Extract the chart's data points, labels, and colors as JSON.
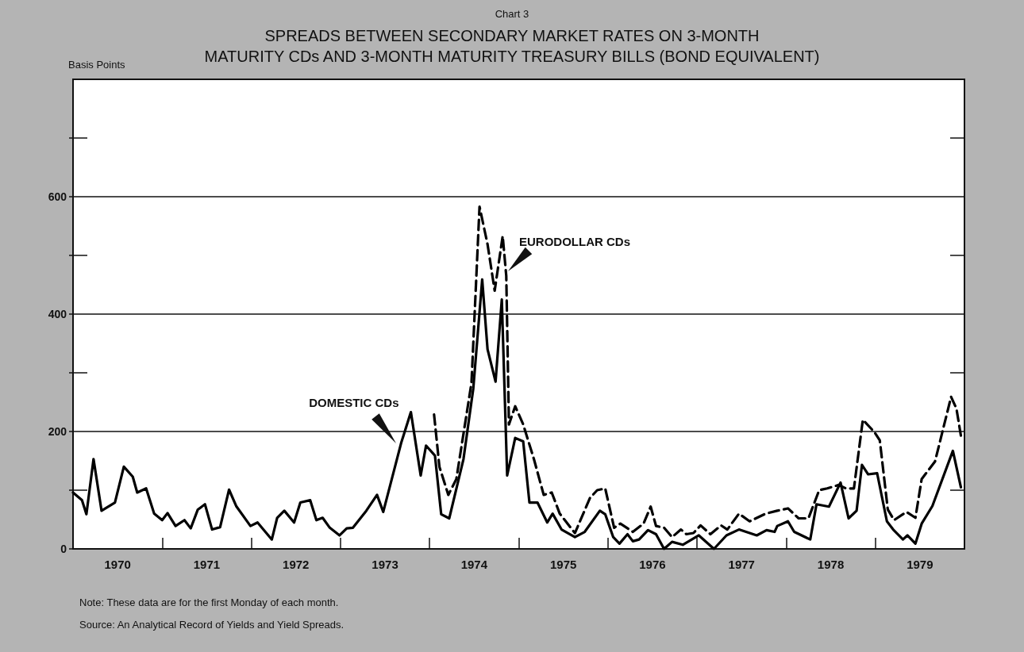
{
  "chart_data": {
    "type": "line",
    "subtitle": "Chart 3",
    "title": "SPREADS BETWEEN SECONDARY MARKET RATES ON 3-MONTH\nMATURITY CDs AND 3-MONTH MATURITY TREASURY BILLS (BOND EQUIVALENT)",
    "ylabel": "Basis Points",
    "annotations": [
      {
        "text": "DOMESTIC CDs",
        "x": 1973.62,
        "y": 180
      },
      {
        "text": "EURODOLLAR CDs",
        "x": 1974.88,
        "y": 473
      },
      "Note:  These data are for the first Monday of each month.",
      "Source:  An Analytical Record of Yields and Yield Spreads."
    ],
    "xlim": [
      1970,
      1980
    ],
    "xticks": [
      {
        "value": 1970,
        "label": null
      },
      {
        "value": 1970.5,
        "label": "1970"
      },
      {
        "value": 1971,
        "label": null
      },
      {
        "value": 1971.5,
        "label": "1971"
      },
      {
        "value": 1972,
        "label": null
      },
      {
        "value": 1972.5,
        "label": "1972"
      },
      {
        "value": 1973,
        "label": null
      },
      {
        "value": 1973.5,
        "label": "1973"
      },
      {
        "value": 1974,
        "label": null
      },
      {
        "value": 1974.5,
        "label": "1974"
      },
      {
        "value": 1975,
        "label": null
      },
      {
        "value": 1975.5,
        "label": "1975"
      },
      {
        "value": 1976,
        "label": null
      },
      {
        "value": 1976.5,
        "label": "1976"
      },
      {
        "value": 1977,
        "label": null
      },
      {
        "value": 1977.5,
        "label": "1977"
      },
      {
        "value": 1978,
        "label": null
      },
      {
        "value": 1978.5,
        "label": "1978"
      },
      {
        "value": 1979,
        "label": null
      },
      {
        "value": 1979.5,
        "label": "1979"
      }
    ],
    "ylim": [
      0,
      800
    ],
    "yticks": [
      0,
      {
        "value": 100,
        "label": null
      },
      200,
      {
        "value": 300,
        "label": null
      },
      400,
      {
        "value": 500,
        "label": null
      },
      600,
      {
        "value": 700,
        "label": null
      }
    ],
    "grid": "y",
    "marker": "none",
    "series": [
      {
        "color": "#000000",
        "line_style": "solid",
        "x": [
          1970.0,
          1970.1,
          1970.15,
          1970.23,
          1970.32,
          1970.47,
          1970.57,
          1970.67,
          1970.72,
          1970.82,
          1970.91,
          1971.0,
          1971.06,
          1971.15,
          1971.25,
          1971.32,
          1971.4,
          1971.48,
          1971.56,
          1971.65,
          1971.75,
          1971.83,
          1971.99,
          1972.07,
          1972.23,
          1972.29,
          1972.37,
          1972.48,
          1972.55,
          1972.66,
          1972.73,
          1972.8,
          1972.88,
          1972.99,
          1973.07,
          1973.14,
          1973.29,
          1973.41,
          1973.48,
          1973.68,
          1973.79,
          1973.9,
          1973.96,
          1974.06,
          1974.13,
          1974.22,
          1974.38,
          1974.49,
          1974.59,
          1974.65,
          1974.74,
          1974.81,
          1974.87,
          1974.96,
          1975.05,
          1975.12,
          1975.21,
          1975.32,
          1975.38,
          1975.48,
          1975.63,
          1975.74,
          1975.91,
          1975.97,
          1976.06,
          1976.13,
          1976.22,
          1976.28,
          1976.35,
          1976.45,
          1976.54,
          1976.63,
          1976.72,
          1976.84,
          1977.02,
          1977.19,
          1977.33,
          1977.47,
          1977.67,
          1977.78,
          1977.87,
          1977.9,
          1978.02,
          1978.09,
          1978.27,
          1978.34,
          1978.48,
          1978.61,
          1978.7,
          1978.79,
          1978.85,
          1978.92,
          1979.02,
          1979.13,
          1979.2,
          1979.31,
          1979.36,
          1979.45,
          1979.52,
          1979.64,
          1979.87,
          1979.96
        ],
        "values": [
          96,
          83,
          59,
          153,
          65,
          79,
          140,
          123,
          96,
          103,
          60,
          49,
          61,
          39,
          49,
          35,
          67,
          76,
          33,
          37,
          101,
          73,
          39,
          45,
          16,
          53,
          65,
          45,
          79,
          83,
          49,
          53,
          36,
          23,
          35,
          36,
          65,
          92,
          63,
          180,
          233,
          125,
          176,
          159,
          59,
          52,
          153,
          273,
          459,
          340,
          285,
          425,
          125,
          189,
          183,
          79,
          79,
          45,
          60,
          33,
          20,
          29,
          65,
          59,
          20,
          9,
          25,
          13,
          16,
          32,
          25,
          0,
          12,
          7,
          23,
          0,
          23,
          33,
          23,
          32,
          29,
          39,
          47,
          29,
          16,
          76,
          72,
          113,
          52,
          65,
          143,
          127,
          129,
          47,
          33,
          16,
          23,
          9,
          43,
          73,
          167,
          105
        ]
      },
      {
        "color": "#000000",
        "line_style": "dashed",
        "x": [
          1974.05,
          1974.11,
          1974.21,
          1974.3,
          1974.41,
          1974.47,
          1974.56,
          1974.65,
          1974.73,
          1974.82,
          1974.86,
          1974.89,
          1974.96,
          1975.05,
          1975.17,
          1975.28,
          1975.37,
          1975.46,
          1975.63,
          1975.8,
          1975.88,
          1975.97,
          1976.07,
          1976.14,
          1976.28,
          1976.4,
          1976.48,
          1976.54,
          1976.63,
          1976.72,
          1976.82,
          1976.88,
          1976.96,
          1977.04,
          1977.15,
          1977.27,
          1977.34,
          1977.47,
          1977.59,
          1977.77,
          1977.9,
          1978.02,
          1978.14,
          1978.25,
          1978.37,
          1978.46,
          1978.59,
          1978.67,
          1978.76,
          1978.86,
          1978.99,
          1979.05,
          1979.14,
          1979.21,
          1979.35,
          1979.45,
          1979.52,
          1979.67,
          1979.85,
          1979.91,
          1979.96
        ],
        "values": [
          229,
          140,
          92,
          119,
          225,
          283,
          583,
          519,
          440,
          533,
          465,
          212,
          243,
          212,
          153,
          92,
          96,
          60,
          27,
          87,
          100,
          103,
          36,
          43,
          29,
          43,
          72,
          39,
          36,
          20,
          33,
          25,
          27,
          40,
          25,
          40,
          33,
          60,
          47,
          60,
          65,
          69,
          52,
          52,
          100,
          103,
          109,
          103,
          103,
          220,
          199,
          185,
          67,
          49,
          63,
          53,
          119,
          149,
          259,
          239,
          193
        ]
      }
    ]
  }
}
